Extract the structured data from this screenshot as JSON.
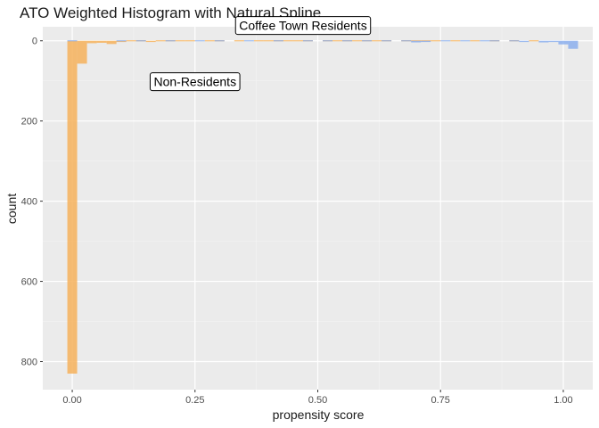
{
  "chart_data": {
    "type": "histogram",
    "title": "ATO Weighted Histogram with Natural Spline",
    "xlabel": "propensity score",
    "ylabel": "count",
    "xlim": [
      -0.06,
      1.06
    ],
    "ylim": [
      -35,
      870
    ],
    "y_reversed": true,
    "xticks": [
      {
        "value": 0.0,
        "label": "0.00"
      },
      {
        "value": 0.25,
        "label": "0.25"
      },
      {
        "value": 0.5,
        "label": "0.50"
      },
      {
        "value": 0.75,
        "label": "0.75"
      },
      {
        "value": 1.0,
        "label": "1.00"
      }
    ],
    "yticks": [
      {
        "value": 0,
        "label": "0"
      },
      {
        "value": 200,
        "label": "200"
      },
      {
        "value": 400,
        "label": "400"
      },
      {
        "value": 600,
        "label": "600"
      },
      {
        "value": 800,
        "label": "800"
      }
    ],
    "grid": true,
    "bin_width": 0.02,
    "annotations": [
      {
        "text": "Coffee Town Residents",
        "x": 0.47,
        "y": -38
      },
      {
        "text": "Non-Residents",
        "x": 0.25,
        "y": 102
      }
    ],
    "series": [
      {
        "color": "#F6B25C",
        "opacity": 0.85,
        "bins": [
          {
            "x0": -0.01,
            "x1": 0.01,
            "count": 830
          },
          {
            "x0": 0.01,
            "x1": 0.03,
            "count": 57
          },
          {
            "x0": 0.03,
            "x1": 0.05,
            "count": 6
          },
          {
            "x0": 0.05,
            "x1": 0.07,
            "count": 5
          },
          {
            "x0": 0.07,
            "x1": 0.09,
            "count": 8
          },
          {
            "x0": 0.09,
            "x1": 0.11,
            "count": 3
          },
          {
            "x0": 0.11,
            "x1": 0.13,
            "count": 2
          },
          {
            "x0": 0.13,
            "x1": 0.15,
            "count": 2
          },
          {
            "x0": 0.15,
            "x1": 0.17,
            "count": 3
          },
          {
            "x0": 0.17,
            "x1": 0.19,
            "count": 2
          },
          {
            "x0": 0.19,
            "x1": 0.21,
            "count": 1
          },
          {
            "x0": 0.21,
            "x1": 0.23,
            "count": 2
          },
          {
            "x0": 0.23,
            "x1": 0.25,
            "count": 1
          },
          {
            "x0": 0.27,
            "x1": 0.29,
            "count": 1
          },
          {
            "x0": 0.29,
            "x1": 0.31,
            "count": 2
          },
          {
            "x0": 0.33,
            "x1": 0.35,
            "count": 1
          },
          {
            "x0": 0.37,
            "x1": 0.39,
            "count": 2
          },
          {
            "x0": 0.39,
            "x1": 0.41,
            "count": 1
          },
          {
            "x0": 0.41,
            "x1": 0.43,
            "count": 2
          },
          {
            "x0": 0.43,
            "x1": 0.45,
            "count": 2
          },
          {
            "x0": 0.45,
            "x1": 0.47,
            "count": 2
          },
          {
            "x0": 0.47,
            "x1": 0.49,
            "count": 1
          },
          {
            "x0": 0.51,
            "x1": 0.53,
            "count": 1
          },
          {
            "x0": 0.53,
            "x1": 0.55,
            "count": 2
          },
          {
            "x0": 0.55,
            "x1": 0.57,
            "count": 1
          },
          {
            "x0": 0.57,
            "x1": 0.59,
            "count": 2
          },
          {
            "x0": 0.59,
            "x1": 0.61,
            "count": 1
          },
          {
            "x0": 0.61,
            "x1": 0.63,
            "count": 2
          },
          {
            "x0": 0.63,
            "x1": 0.65,
            "count": 1
          },
          {
            "x0": 0.67,
            "x1": 0.69,
            "count": 1
          },
          {
            "x0": 0.69,
            "x1": 0.71,
            "count": 2
          },
          {
            "x0": 0.71,
            "x1": 0.73,
            "count": 1
          },
          {
            "x0": 0.73,
            "x1": 0.75,
            "count": 2
          },
          {
            "x0": 0.77,
            "x1": 0.79,
            "count": 1
          },
          {
            "x0": 0.81,
            "x1": 0.83,
            "count": 1
          },
          {
            "x0": 0.85,
            "x1": 0.87,
            "count": 1
          },
          {
            "x0": 0.89,
            "x1": 0.91,
            "count": 1
          },
          {
            "x0": 0.93,
            "x1": 0.95,
            "count": 1
          }
        ]
      },
      {
        "color": "#7FA7EE",
        "opacity": 0.75,
        "bins": [
          {
            "x0": -0.01,
            "x1": 0.01,
            "count": 1
          },
          {
            "x0": 0.09,
            "x1": 0.11,
            "count": 1
          },
          {
            "x0": 0.13,
            "x1": 0.15,
            "count": 1
          },
          {
            "x0": 0.19,
            "x1": 0.21,
            "count": 2
          },
          {
            "x0": 0.25,
            "x1": 0.27,
            "count": 1
          },
          {
            "x0": 0.29,
            "x1": 0.31,
            "count": 1
          },
          {
            "x0": 0.35,
            "x1": 0.37,
            "count": 2
          },
          {
            "x0": 0.41,
            "x1": 0.43,
            "count": 1
          },
          {
            "x0": 0.47,
            "x1": 0.49,
            "count": 2
          },
          {
            "x0": 0.51,
            "x1": 0.53,
            "count": 1
          },
          {
            "x0": 0.55,
            "x1": 0.57,
            "count": 2
          },
          {
            "x0": 0.59,
            "x1": 0.61,
            "count": 1
          },
          {
            "x0": 0.63,
            "x1": 0.65,
            "count": 2
          },
          {
            "x0": 0.67,
            "x1": 0.69,
            "count": 2
          },
          {
            "x0": 0.69,
            "x1": 0.71,
            "count": 4
          },
          {
            "x0": 0.71,
            "x1": 0.73,
            "count": 3
          },
          {
            "x0": 0.75,
            "x1": 0.77,
            "count": 1
          },
          {
            "x0": 0.79,
            "x1": 0.81,
            "count": 2
          },
          {
            "x0": 0.83,
            "x1": 0.85,
            "count": 1
          },
          {
            "x0": 0.85,
            "x1": 0.87,
            "count": 2
          },
          {
            "x0": 0.89,
            "x1": 0.91,
            "count": 2
          },
          {
            "x0": 0.91,
            "x1": 0.93,
            "count": 3
          },
          {
            "x0": 0.95,
            "x1": 0.97,
            "count": 4
          },
          {
            "x0": 0.97,
            "x1": 0.99,
            "count": 3
          },
          {
            "x0": 0.99,
            "x1": 1.01,
            "count": 9
          },
          {
            "x0": 1.01,
            "x1": 1.03,
            "count": 20
          }
        ]
      }
    ]
  }
}
